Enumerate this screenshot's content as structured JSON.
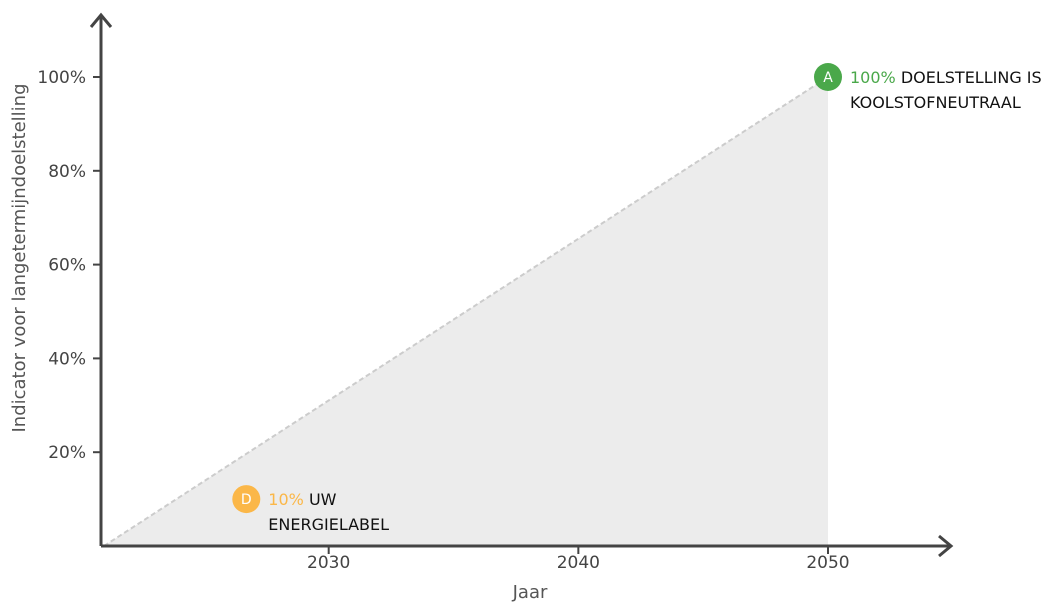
{
  "chart_data": {
    "type": "area",
    "xlabel": "Jaar",
    "ylabel": "Indicator voor langetermijndoelstelling",
    "x_ticks": [
      2030,
      2040,
      2050
    ],
    "y_ticks": [
      "20%",
      "40%",
      "60%",
      "80%",
      "100%"
    ],
    "xlim": [
      2020.9,
      2055
    ],
    "ylim": [
      0,
      100
    ],
    "series": [
      {
        "x": [
          2021,
          2050
        ],
        "y": [
          0,
          100
        ]
      }
    ],
    "points": [
      {
        "letter": "D",
        "x": 2026.7,
        "y": 10,
        "value_text": "10%",
        "text_lines": [
          "UW",
          "ENERGIELABEL"
        ],
        "color": "#fbb748"
      },
      {
        "letter": "A",
        "x": 2050,
        "y": 100,
        "value_text": "100%",
        "text_lines": [
          "DOELSTELLING IS",
          "KOOLSTOFNEUTRAAL"
        ],
        "color": "#4aa84a"
      }
    ],
    "colors": {
      "fill": "#ececec",
      "line": "#cccccc",
      "axis": "#444444"
    }
  }
}
